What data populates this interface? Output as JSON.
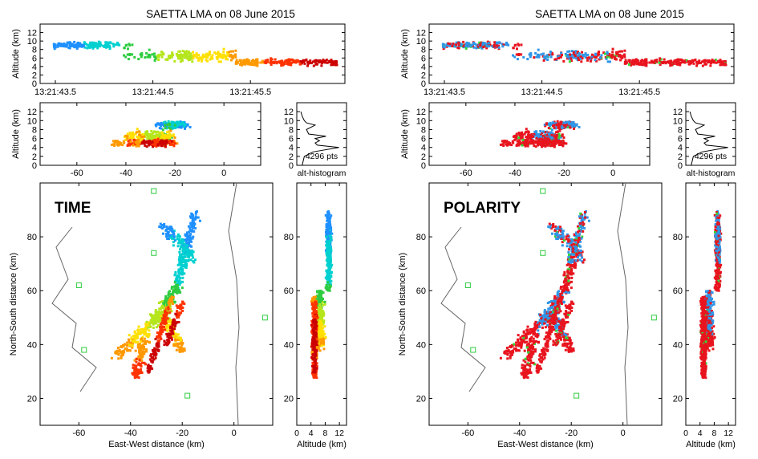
{
  "chart_data": [
    {
      "panel": "time",
      "type": "scatter",
      "title": "SAETTA LMA on 08 June 2015",
      "overlay_label": "TIME",
      "coloring": "time",
      "colors": [
        "#1e90ff",
        "#00d0d0",
        "#2ecc40",
        "#b5e61d",
        "#ffe000",
        "#ff9900",
        "#ff3300",
        "#cc0000"
      ],
      "altitude_time": {
        "ylabel": "Altitude (km)",
        "ylim": [
          0,
          14
        ],
        "yticks": [
          "0",
          "2",
          "4",
          "6",
          "8",
          "10",
          "12"
        ],
        "xticks": [
          "13:21:43.5",
          "13:21:44.5",
          "13:21:45.5"
        ]
      },
      "altitude_ew": {
        "ylabel": "Altitude (km)",
        "ylim": [
          0,
          14
        ],
        "yticks": [
          "0",
          "2",
          "4",
          "6",
          "8",
          "10",
          "12"
        ],
        "xlim": [
          -75,
          15
        ],
        "xticks": [
          "-60",
          "-40",
          "-20",
          "0"
        ]
      },
      "histogram": {
        "label": "alt-histogram",
        "count_label": "4296 pts",
        "yticks": [
          "0",
          "2",
          "4",
          "6",
          "8",
          "10",
          "12"
        ],
        "profile": [
          [
            0,
            0.05
          ],
          [
            2,
            0.1
          ],
          [
            3,
            0.3
          ],
          [
            4,
            0.9
          ],
          [
            4.5,
            0.4
          ],
          [
            5,
            0.35
          ],
          [
            5.5,
            0.45
          ],
          [
            6,
            0.35
          ],
          [
            6.5,
            0.6
          ],
          [
            7,
            0.2
          ],
          [
            8,
            0.15
          ],
          [
            9,
            0.35
          ],
          [
            9.5,
            0.15
          ],
          [
            10,
            0.1
          ],
          [
            11,
            0.05
          ],
          [
            12,
            0.02
          ]
        ]
      },
      "plan": {
        "xlabel": "East-West distance (km)",
        "ylabel": "North-South distance (km)",
        "xlim": [
          -75,
          15
        ],
        "ylim": [
          10,
          100
        ],
        "xticks": [
          "-60",
          "-40",
          "-20",
          "0"
        ],
        "yticks": [
          "20",
          "40",
          "60",
          "80"
        ]
      },
      "altitude_ns": {
        "xlabel": "Altitude (km)",
        "xlim": [
          0,
          14
        ],
        "xticks": [
          "0",
          "4",
          "8",
          "12"
        ],
        "ylim": [
          10,
          100
        ],
        "yticks": [
          "20",
          "40",
          "60",
          "80"
        ]
      }
    },
    {
      "panel": "polarity",
      "type": "scatter",
      "title": "SAETTA LMA on 08 June 2015",
      "overlay_label": "POLARITY",
      "coloring": "polarity",
      "colors": [
        "#e8141e",
        "#2f96e8",
        "#37d83a"
      ],
      "altitude_time": {
        "ylabel": "Altitude (km)",
        "ylim": [
          0,
          14
        ],
        "yticks": [
          "0",
          "2",
          "4",
          "6",
          "8",
          "10",
          "12"
        ],
        "xticks": [
          "13:21:43.5",
          "13:21:44.5",
          "13:21:45.5"
        ]
      },
      "altitude_ew": {
        "ylabel": "Altitude (km)",
        "ylim": [
          0,
          14
        ],
        "yticks": [
          "0",
          "2",
          "4",
          "6",
          "8",
          "10",
          "12"
        ],
        "xlim": [
          -75,
          15
        ],
        "xticks": [
          "-60",
          "-40",
          "-20",
          "0"
        ]
      },
      "histogram": {
        "label": "alt-histogram",
        "count_label": "4296 pts",
        "yticks": [
          "0",
          "2",
          "4",
          "6",
          "8",
          "10",
          "12"
        ],
        "profile": [
          [
            0,
            0.05
          ],
          [
            2,
            0.1
          ],
          [
            3,
            0.3
          ],
          [
            4,
            0.9
          ],
          [
            4.5,
            0.4
          ],
          [
            5,
            0.35
          ],
          [
            5.5,
            0.45
          ],
          [
            6,
            0.35
          ],
          [
            6.5,
            0.6
          ],
          [
            7,
            0.2
          ],
          [
            8,
            0.15
          ],
          [
            9,
            0.35
          ],
          [
            9.5,
            0.15
          ],
          [
            10,
            0.1
          ],
          [
            11,
            0.05
          ],
          [
            12,
            0.02
          ]
        ]
      },
      "plan": {
        "xlabel": "East-West distance (km)",
        "ylabel": "North-South distance (km)",
        "xlim": [
          -75,
          15
        ],
        "ylim": [
          10,
          100
        ],
        "xticks": [
          "-60",
          "-40",
          "-20",
          "0"
        ],
        "yticks": [
          "20",
          "40",
          "60",
          "80"
        ]
      },
      "altitude_ns": {
        "xlabel": "Altitude (km)",
        "xlim": [
          0,
          14
        ],
        "xticks": [
          "0",
          "4",
          "8",
          "12"
        ],
        "ylim": [
          10,
          100
        ],
        "yticks": [
          "20",
          "40",
          "60",
          "80"
        ]
      }
    }
  ]
}
